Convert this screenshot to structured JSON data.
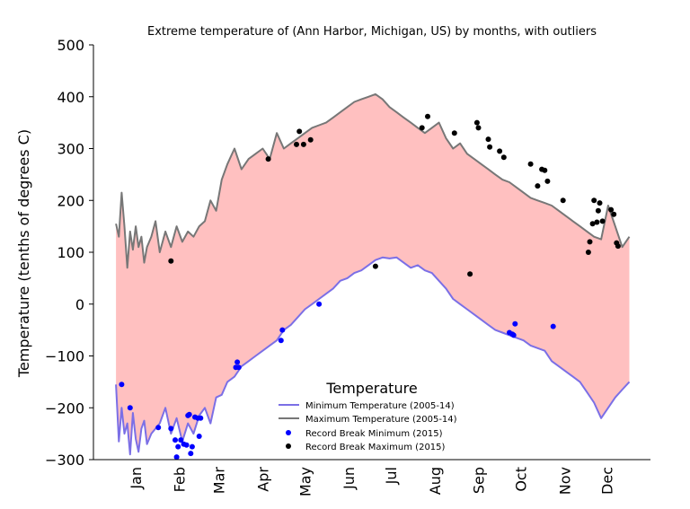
{
  "chart_data": {
    "type": "line",
    "title": "Extreme temperature of  (Ann Harbor, Michigan, US) by months, with outliers",
    "xlabel": "",
    "ylabel": "Temperature (tenths of degrees C)",
    "ylim": [
      -300,
      500
    ],
    "yticks": [
      500,
      400,
      300,
      200,
      100,
      0,
      -100,
      -200,
      -300
    ],
    "xlim": [
      -15,
      380
    ],
    "categories": [
      "Jan",
      "Feb",
      "Mar",
      "Apr",
      "May",
      "Jun",
      "Jul",
      "Aug",
      "Sep",
      "Oct",
      "Nov",
      "Dec"
    ],
    "month_positions": [
      15,
      46,
      74,
      105,
      135,
      166,
      196,
      227,
      258,
      288,
      319,
      349
    ],
    "fill_color": "#ffc0c0",
    "legend": {
      "title": "Temperature",
      "placement": "lower-center",
      "entries": [
        "Minimum Temperature (2005-14)",
        "Maximum Temperature (2005-14)",
        "Record Break Minimum (2015)",
        "Record Break Maximum (2015)"
      ]
    },
    "series": [
      {
        "name": "Minimum Temperature (2005-14)",
        "kind": "line",
        "color": "#7b6fe6",
        "x": [
          1,
          3,
          5,
          7,
          9,
          11,
          13,
          15,
          17,
          19,
          21,
          23,
          26,
          29,
          32,
          36,
          40,
          44,
          48,
          52,
          56,
          60,
          64,
          68,
          72,
          76,
          80,
          85,
          90,
          95,
          100,
          105,
          110,
          115,
          120,
          125,
          130,
          135,
          140,
          145,
          150,
          155,
          160,
          165,
          170,
          175,
          180,
          185,
          190,
          195,
          200,
          205,
          210,
          215,
          220,
          225,
          230,
          235,
          240,
          245,
          250,
          255,
          260,
          265,
          270,
          275,
          280,
          285,
          290,
          295,
          300,
          305,
          310,
          315,
          320,
          325,
          330,
          335,
          340,
          345,
          350,
          355,
          360,
          365
        ],
        "values": [
          -155,
          -265,
          -200,
          -250,
          -230,
          -290,
          -210,
          -260,
          -285,
          -240,
          -225,
          -270,
          -250,
          -240,
          -230,
          -200,
          -250,
          -220,
          -265,
          -230,
          -250,
          -215,
          -200,
          -230,
          -180,
          -175,
          -150,
          -140,
          -120,
          -110,
          -100,
          -90,
          -80,
          -70,
          -50,
          -40,
          -25,
          -10,
          0,
          10,
          20,
          30,
          45,
          50,
          60,
          65,
          75,
          85,
          90,
          88,
          90,
          80,
          70,
          75,
          65,
          60,
          45,
          30,
          10,
          0,
          -10,
          -20,
          -30,
          -40,
          -50,
          -55,
          -60,
          -65,
          -70,
          -80,
          -85,
          -90,
          -110,
          -120,
          -130,
          -140,
          -150,
          -170,
          -190,
          -220,
          -200,
          -180,
          -165,
          -150
        ]
      },
      {
        "name": "Maximum Temperature (2005-14)",
        "kind": "line",
        "color": "#777777",
        "x": [
          1,
          3,
          5,
          7,
          9,
          11,
          13,
          15,
          17,
          19,
          21,
          23,
          26,
          29,
          32,
          36,
          40,
          44,
          48,
          52,
          56,
          60,
          64,
          68,
          72,
          76,
          80,
          85,
          90,
          95,
          100,
          105,
          110,
          115,
          120,
          125,
          130,
          135,
          140,
          145,
          150,
          155,
          160,
          165,
          170,
          175,
          180,
          185,
          190,
          195,
          200,
          205,
          210,
          215,
          220,
          225,
          230,
          235,
          240,
          245,
          250,
          255,
          260,
          265,
          270,
          275,
          280,
          285,
          290,
          295,
          300,
          305,
          310,
          315,
          320,
          325,
          330,
          335,
          340,
          345,
          350,
          355,
          360,
          365
        ],
        "values": [
          155,
          130,
          215,
          150,
          70,
          140,
          105,
          150,
          110,
          130,
          80,
          110,
          130,
          160,
          100,
          140,
          110,
          150,
          120,
          140,
          130,
          150,
          160,
          200,
          180,
          240,
          270,
          300,
          260,
          280,
          290,
          300,
          280,
          330,
          300,
          310,
          320,
          330,
          340,
          345,
          350,
          360,
          370,
          380,
          390,
          395,
          400,
          405,
          395,
          380,
          370,
          360,
          350,
          340,
          330,
          340,
          350,
          320,
          300,
          310,
          290,
          280,
          270,
          260,
          250,
          240,
          235,
          225,
          215,
          205,
          200,
          195,
          190,
          180,
          170,
          160,
          150,
          140,
          130,
          125,
          190,
          150,
          110,
          130
        ]
      },
      {
        "name": "Record Break Minimum (2015)",
        "kind": "scatter",
        "color": "#0000ff",
        "points": [
          [
            5,
            -155
          ],
          [
            11,
            -200
          ],
          [
            31,
            -238
          ],
          [
            40,
            -240
          ],
          [
            43,
            -262
          ],
          [
            44,
            -295
          ],
          [
            45,
            -275
          ],
          [
            47,
            -262
          ],
          [
            49,
            -270
          ],
          [
            51,
            -272
          ],
          [
            52,
            -215
          ],
          [
            53,
            -213
          ],
          [
            54,
            -288
          ],
          [
            55,
            -275
          ],
          [
            57,
            -218
          ],
          [
            59,
            -220
          ],
          [
            60,
            -255
          ],
          [
            61,
            -220
          ],
          [
            86,
            -122
          ],
          [
            87,
            -112
          ],
          [
            88,
            -122
          ],
          [
            118,
            -70
          ],
          [
            119,
            -50
          ],
          [
            145,
            0
          ],
          [
            280,
            -55
          ],
          [
            282,
            -58
          ],
          [
            283,
            -60
          ],
          [
            284,
            -38
          ],
          [
            311,
            -43
          ]
        ]
      },
      {
        "name": "Record Break Maximum (2015)",
        "kind": "scatter",
        "color": "#000000",
        "points": [
          [
            40,
            83
          ],
          [
            109,
            280
          ],
          [
            129,
            308
          ],
          [
            131,
            333
          ],
          [
            134,
            308
          ],
          [
            139,
            317
          ],
          [
            185,
            73
          ],
          [
            218,
            340
          ],
          [
            222,
            362
          ],
          [
            241,
            330
          ],
          [
            252,
            58
          ],
          [
            257,
            350
          ],
          [
            258,
            340
          ],
          [
            265,
            318
          ],
          [
            266,
            303
          ],
          [
            273,
            295
          ],
          [
            276,
            283
          ],
          [
            295,
            270
          ],
          [
            300,
            228
          ],
          [
            303,
            260
          ],
          [
            305,
            258
          ],
          [
            307,
            237
          ],
          [
            318,
            200
          ],
          [
            336,
            100
          ],
          [
            337,
            120
          ],
          [
            339,
            155
          ],
          [
            340,
            200
          ],
          [
            342,
            158
          ],
          [
            343,
            180
          ],
          [
            344,
            195
          ],
          [
            346,
            160
          ],
          [
            352,
            182
          ],
          [
            354,
            173
          ],
          [
            356,
            118
          ],
          [
            357,
            112
          ]
        ]
      }
    ]
  }
}
